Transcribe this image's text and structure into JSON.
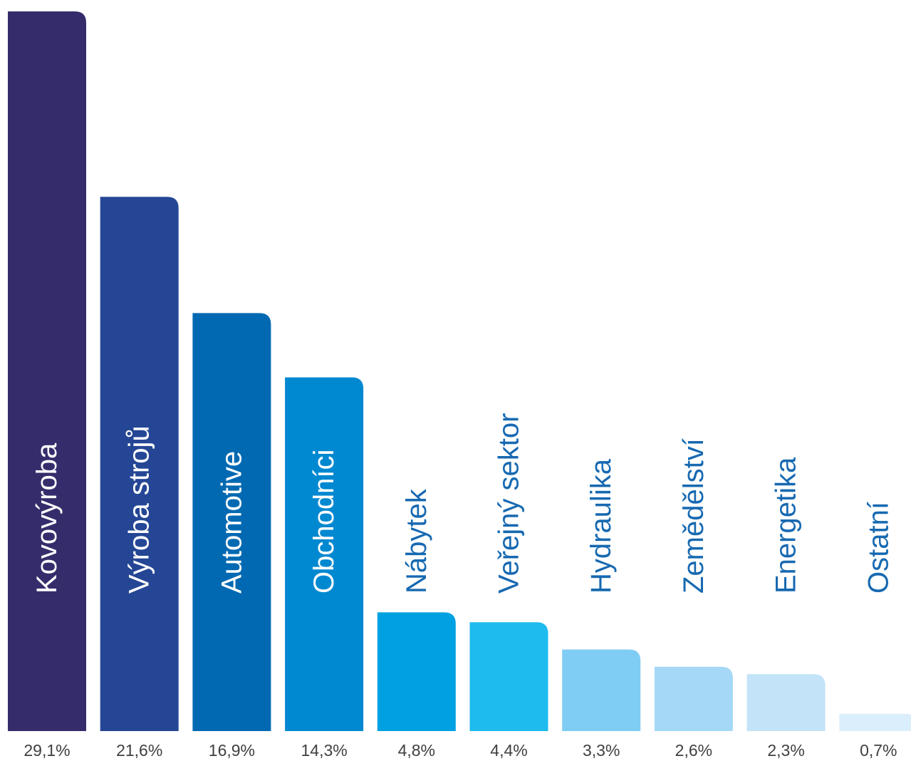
{
  "chart_data": {
    "type": "bar",
    "categories": [
      "Kovovýroba",
      "Výroba strojů",
      "Automotive",
      "Obchodníci",
      "Nábytek",
      "Veřejný sektor",
      "Hydraulika",
      "Zemědělství",
      "Energetika",
      "Ostatní"
    ],
    "values": [
      29.1,
      21.6,
      16.9,
      14.3,
      4.8,
      4.4,
      3.3,
      2.6,
      2.3,
      0.7
    ],
    "value_labels": [
      "29,1%",
      "21,6%",
      "16,9%",
      "14,3%",
      "4,8%",
      "4,4%",
      "3,3%",
      "2,6%",
      "2,3%",
      "0,7%"
    ],
    "colors": [
      "#352d6b",
      "#254695",
      "#0169b2",
      "#0088d1",
      "#00a1e2",
      "#1ebbee",
      "#7fcdf4",
      "#a4d8f6",
      "#c3e3f8",
      "#daeefb"
    ],
    "category_label_colors": [
      "#ffffff",
      "#ffffff",
      "#ffffff",
      "#ffffff",
      "#1769b1",
      "#1769b1",
      "#1769b1",
      "#1769b1",
      "#1769b1",
      "#1769b1"
    ],
    "title": "",
    "xlabel": "",
    "ylabel": "",
    "ylim": [
      0,
      29.1
    ],
    "grid": false,
    "legend": "none"
  }
}
